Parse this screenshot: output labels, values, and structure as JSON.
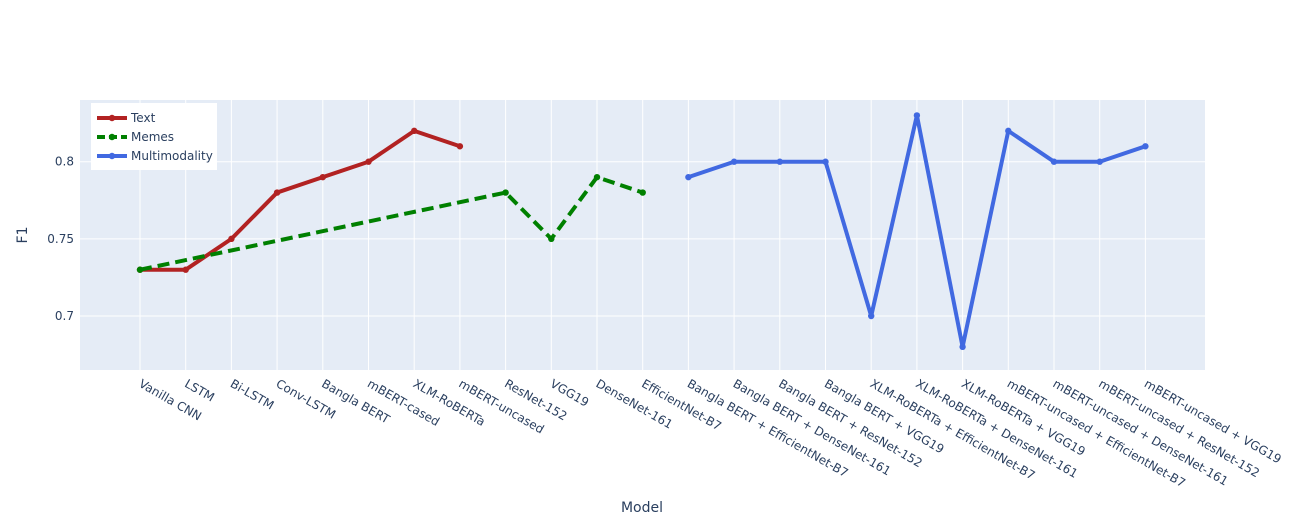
{
  "chart_data": {
    "type": "line",
    "title": "",
    "xlabel": "Model",
    "ylabel": "F1",
    "ylim": [
      0.665,
      0.84
    ],
    "yticks": [
      0.7,
      0.75,
      0.8
    ],
    "ytick_labels": [
      "0.7",
      "0.75",
      "0.8"
    ],
    "grid": true,
    "legend_position": "top-left",
    "categories": [
      "Vanilla CNN",
      "LSTM",
      "Bi-LSTM",
      "Conv-LSTM",
      "Bangla BERT",
      "mBERT-cased",
      "XLM-RoBERTa",
      "mBERT-uncased",
      "ResNet-152",
      "VGG19",
      "DenseNet-161",
      "EfficientNet-B7",
      "Bangla BERT + EfficientNet-B7",
      "Bangla BERT + DenseNet-161",
      "Bangla BERT + ResNet-152",
      "Bangla BERT + VGG19",
      "XLM-RoBERTa + EfficientNet-B7",
      "XLM-RoBERTa + DenseNet-161",
      "XLM-RoBERTa + VGG19",
      "mBERT-uncased + EfficientNet-B7",
      "mBERT-uncased + DenseNet-161",
      "mBERT-uncased + ResNet-152",
      "mBERT-uncased + VGG19"
    ],
    "series": [
      {
        "name": "Text",
        "color": "#b22222",
        "dash": "solid",
        "points": [
          {
            "x": "Vanilla CNN",
            "y": 0.73
          },
          {
            "x": "LSTM",
            "y": 0.73
          },
          {
            "x": "Bi-LSTM",
            "y": 0.75
          },
          {
            "x": "Conv-LSTM",
            "y": 0.78
          },
          {
            "x": "Bangla BERT",
            "y": 0.79
          },
          {
            "x": "mBERT-cased",
            "y": 0.8
          },
          {
            "x": "XLM-RoBERTa",
            "y": 0.82
          },
          {
            "x": "mBERT-uncased",
            "y": 0.81
          }
        ]
      },
      {
        "name": "Memes",
        "color": "#008000",
        "dash": "dash",
        "points": [
          {
            "x": "Vanilla CNN",
            "y": 0.73
          },
          {
            "x": "ResNet-152",
            "y": 0.78
          },
          {
            "x": "VGG19",
            "y": 0.75
          },
          {
            "x": "DenseNet-161",
            "y": 0.79
          },
          {
            "x": "EfficientNet-B7",
            "y": 0.78
          }
        ]
      },
      {
        "name": "Multimodality",
        "color": "#4169e1",
        "dash": "solid",
        "points": [
          {
            "x": "Bangla BERT + EfficientNet-B7",
            "y": 0.79
          },
          {
            "x": "Bangla BERT + DenseNet-161",
            "y": 0.8
          },
          {
            "x": "Bangla BERT + ResNet-152",
            "y": 0.8
          },
          {
            "x": "Bangla BERT + VGG19",
            "y": 0.8
          },
          {
            "x": "XLM-RoBERTa + EfficientNet-B7",
            "y": 0.7
          },
          {
            "x": "XLM-RoBERTa + DenseNet-161",
            "y": 0.83
          },
          {
            "x": "XLM-RoBERTa + VGG19",
            "y": 0.68
          },
          {
            "x": "mBERT-uncased + EfficientNet-B7",
            "y": 0.82
          },
          {
            "x": "mBERT-uncased + DenseNet-161",
            "y": 0.8
          },
          {
            "x": "mBERT-uncased + ResNet-152",
            "y": 0.8
          },
          {
            "x": "mBERT-uncased + VGG19",
            "y": 0.81
          }
        ]
      }
    ]
  }
}
